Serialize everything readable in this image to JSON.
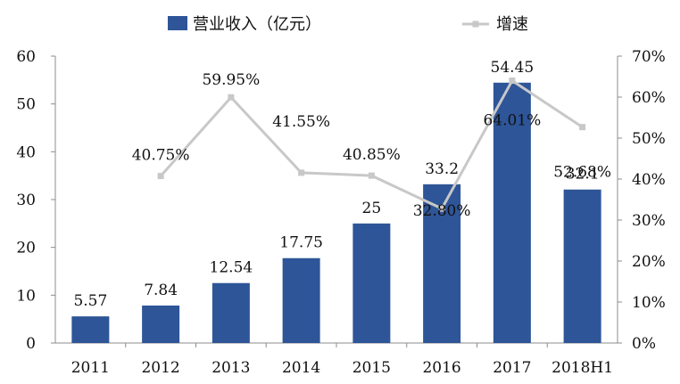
{
  "chart_data": {
    "type": "bar",
    "categories": [
      "2011",
      "2012",
      "2013",
      "2014",
      "2015",
      "2016",
      "2017",
      "2018H1"
    ],
    "series": [
      {
        "name": "营业收入（亿元）",
        "type": "bar",
        "axis": "left",
        "values": [
          5.57,
          7.84,
          12.54,
          17.75,
          25,
          33.2,
          54.45,
          32.1
        ],
        "labels": [
          "5.57",
          "7.84",
          "12.54",
          "17.75",
          "25",
          "33.2",
          "54.45",
          "32.1"
        ],
        "color": "#2E5597"
      },
      {
        "name": "增速",
        "type": "line",
        "axis": "right",
        "values": [
          null,
          40.75,
          59.95,
          41.55,
          40.85,
          32.8,
          64.01,
          52.68
        ],
        "labels": [
          null,
          "40.75%",
          "59.95%",
          "41.55%",
          "40.85%",
          "32.80%",
          "64.01%",
          "52.68%"
        ],
        "color": "#C8C8C8"
      }
    ],
    "y_left": {
      "ylim": [
        0,
        60
      ],
      "ticks": [
        "0",
        "10",
        "20",
        "30",
        "40",
        "50",
        "60"
      ]
    },
    "y_right": {
      "ylim": [
        0,
        70
      ],
      "ticks": [
        "0%",
        "10%",
        "20%",
        "30%",
        "40%",
        "50%",
        "60%",
        "70%"
      ]
    },
    "legend": {
      "position": "top"
    },
    "grid": false
  }
}
